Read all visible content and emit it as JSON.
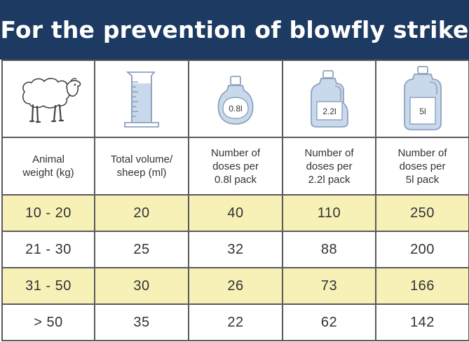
{
  "title": "For the prevention of blowfly strike",
  "icons": [
    "sheep-icon",
    "measuring-cylinder-icon",
    "bottle-0.8l-icon",
    "bottle-2.2l-icon",
    "bottle-5l-icon"
  ],
  "bottle_labels": [
    "0.8l",
    "2.2l",
    "5l"
  ],
  "columns": [
    [
      "Animal",
      "weight (kg)"
    ],
    [
      "Total volume/",
      "sheep (ml)"
    ],
    [
      "Number of",
      "doses per",
      "0.8l pack"
    ],
    [
      "Number of",
      "doses per",
      "2.2l pack"
    ],
    [
      "Number of",
      "doses per",
      "5l pack"
    ]
  ],
  "rows": [
    [
      "10 - 20",
      "20",
      "40",
      "110",
      "250"
    ],
    [
      "21 - 30",
      "25",
      "32",
      "88",
      "200"
    ],
    [
      "31 - 50",
      "30",
      "26",
      "73",
      "166"
    ],
    [
      "> 50",
      "35",
      "22",
      "62",
      "142"
    ]
  ],
  "colors": {
    "title_bg": "#1d3a62",
    "title_text": "#ffffff",
    "shaded_row": "#f7f1b8",
    "border": "#5a5a5a",
    "bottle_fill": "#c9d8ea",
    "bottle_stroke": "#8da3bf"
  }
}
